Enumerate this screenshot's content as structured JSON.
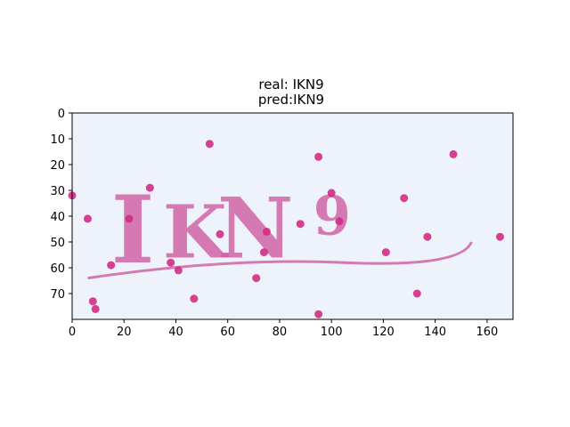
{
  "figure": {
    "title_line1": "real: IKN9",
    "title_line2": "pred:IKN9"
  },
  "image": {
    "captcha_text": "IKN9",
    "background_color": "#eef3fb",
    "ink_color": "#cf63a4",
    "dot_color": "#d12c86",
    "xlim": [
      0,
      170
    ],
    "ylim": [
      0,
      80
    ],
    "y_axis_inverted": true,
    "x_ticks": [
      "0",
      "20",
      "40",
      "60",
      "80",
      "100",
      "120",
      "140",
      "160"
    ],
    "y_ticks": [
      "0",
      "10",
      "20",
      "30",
      "40",
      "50",
      "60",
      "70"
    ],
    "noise_dots": [
      [
        0,
        32
      ],
      [
        6,
        41
      ],
      [
        8,
        73
      ],
      [
        9,
        76
      ],
      [
        15,
        59
      ],
      [
        22,
        41
      ],
      [
        30,
        29
      ],
      [
        38,
        58
      ],
      [
        41,
        61
      ],
      [
        47,
        72
      ],
      [
        53,
        12
      ],
      [
        57,
        47
      ],
      [
        71,
        64
      ],
      [
        74,
        54
      ],
      [
        75,
        46
      ],
      [
        88,
        43
      ],
      [
        95,
        17
      ],
      [
        95,
        78
      ],
      [
        100,
        31
      ],
      [
        103,
        42
      ],
      [
        121,
        54
      ],
      [
        128,
        33
      ],
      [
        133,
        70
      ],
      [
        137,
        48
      ],
      [
        147,
        16
      ],
      [
        165,
        48
      ]
    ]
  }
}
